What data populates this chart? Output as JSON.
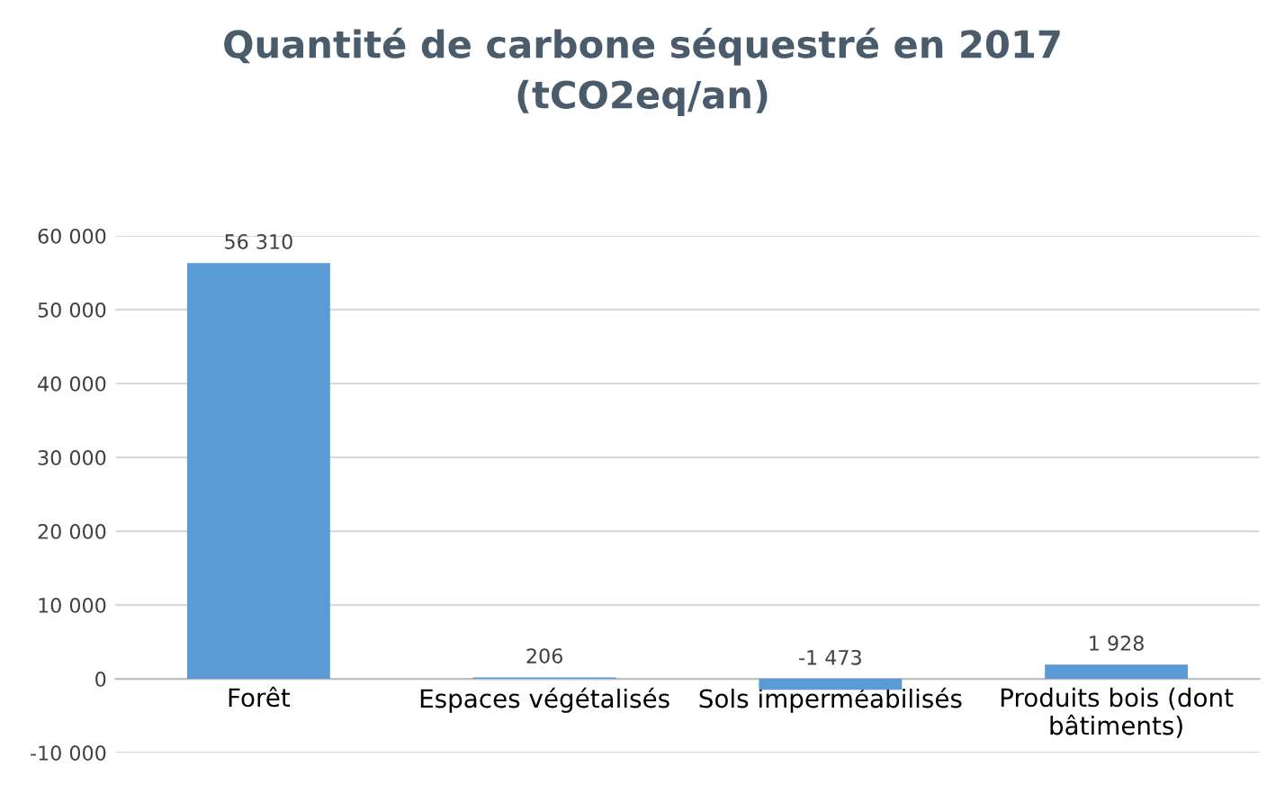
{
  "chart_data": {
    "type": "bar",
    "title": "Quantité de carbone séquestré en 2017\n(tCO2eq/an)",
    "categories": [
      "Forêt",
      "Espaces végétalisés",
      "Sols imperméabilisés",
      "Produits bois (dont\nbâtiments)"
    ],
    "values": [
      56310,
      206,
      -1473,
      1928
    ],
    "value_labels": [
      "56 310",
      "206",
      "-1 473",
      "1 928"
    ],
    "color": "#5b9bd5",
    "ylim": [
      -10000,
      60000
    ],
    "yticks": [
      {
        "value": -10000,
        "label": "-10 000"
      },
      {
        "value": 0,
        "label": "0"
      },
      {
        "value": 10000,
        "label": "10 000"
      },
      {
        "value": 20000,
        "label": "20 000"
      },
      {
        "value": 30000,
        "label": "30 000"
      },
      {
        "value": 40000,
        "label": "40 000"
      },
      {
        "value": 50000,
        "label": "50 000"
      },
      {
        "value": 60000,
        "label": "60 000"
      }
    ],
    "grid": "y"
  }
}
